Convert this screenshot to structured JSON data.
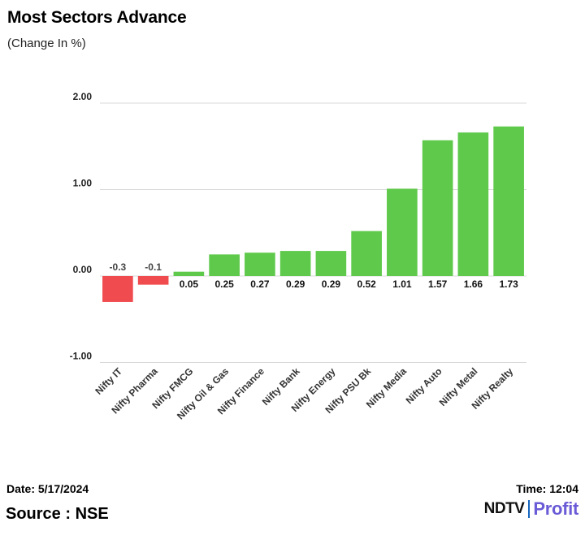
{
  "title": "Most Sectors Advance",
  "subtitle": "(Change In %)",
  "footer": {
    "date": "Date: 5/17/2024",
    "time": "Time: 12:04",
    "source": "Source : NSE",
    "logo_ndtv": "NDTV",
    "logo_profit": "Profit"
  },
  "colors": {
    "positive": "#5ec94a",
    "negative": "#f04b4e",
    "grid": "#d9d9d9"
  },
  "chart_data": {
    "type": "bar",
    "title": "Most Sectors Advance",
    "subtitle": "(Change In %)",
    "xlabel": "",
    "ylabel": "Change In %",
    "ylim": [
      -1.0,
      2.0
    ],
    "yticks": [
      -1.0,
      0.0,
      1.0,
      2.0
    ],
    "ytick_labels": [
      "-1.00",
      "0.00",
      "1.00",
      "2.00"
    ],
    "grid": true,
    "categories": [
      "Nifty IT",
      "Nifty Pharma",
      "Nifty FMCG",
      "Nifty Oil & Gas",
      "Nifty Finance",
      "Nifty Bank",
      "Nifty Energy",
      "Nifty PSU Bk",
      "Nifty Media",
      "Nifty Auto",
      "Nifty Metal",
      "Nifty Realty"
    ],
    "values": [
      -0.3,
      -0.1,
      0.05,
      0.25,
      0.27,
      0.29,
      0.29,
      0.52,
      1.01,
      1.57,
      1.66,
      1.73
    ],
    "data_labels": [
      "-0.3",
      "-0.1",
      "0.05",
      "0.25",
      "0.27",
      "0.29",
      "0.29",
      "0.52",
      "1.01",
      "1.57",
      "1.66",
      "1.73"
    ]
  }
}
